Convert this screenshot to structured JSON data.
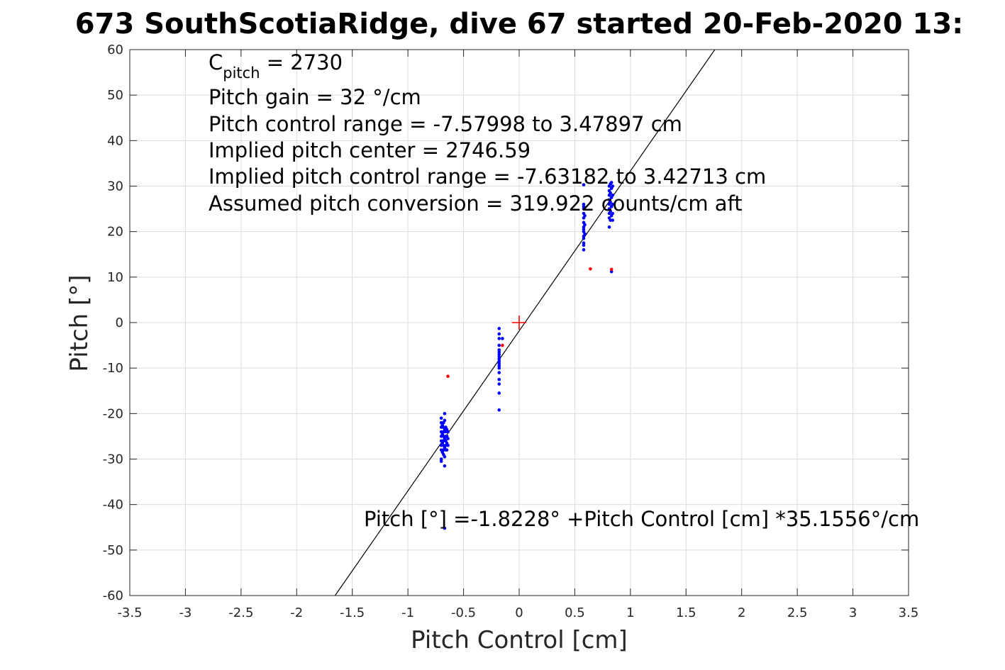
{
  "chart_data": {
    "type": "scatter",
    "title": "673 SouthScotiaRidge, dive 67 started 20-Feb-2020 13:",
    "xlabel": "Pitch Control [cm]",
    "ylabel": "Pitch [°]",
    "xlim": [
      -3.5,
      3.5
    ],
    "ylim": [
      -60,
      60
    ],
    "xticks": [
      -3.5,
      -3,
      -2.5,
      -2,
      -1.5,
      -1,
      -0.5,
      0,
      0.5,
      1,
      1.5,
      2,
      2.5,
      3,
      3.5
    ],
    "yticks": [
      -60,
      -50,
      -40,
      -30,
      -20,
      -10,
      0,
      10,
      20,
      30,
      40,
      50,
      60
    ],
    "xtick_labels": [
      "-3.5",
      "-3",
      "-2.5",
      "-2",
      "-1.5",
      "-1",
      "-0.5",
      "0",
      "0.5",
      "1",
      "1.5",
      "2",
      "2.5",
      "3",
      "3.5"
    ],
    "ytick_labels": [
      "-60",
      "-50",
      "-40",
      "-30",
      "-20",
      "-10",
      "0",
      "10",
      "20",
      "30",
      "40",
      "50",
      "60"
    ],
    "grid": true,
    "annotations": {
      "c_pitch_main": "C",
      "c_pitch_sub": "pitch",
      "c_pitch_value": " = 2730",
      "pitch_gain": "Pitch gain = 32 °/cm",
      "pitch_control_range": "Pitch control range = -7.57998 to 3.47897 cm",
      "implied_center": "Implied pitch center = 2746.59",
      "implied_range": "Implied pitch control range = -7.63182 to 3.42713 cm",
      "assumed_conversion": "Assumed pitch conversion = 319.922 counts/cm aft",
      "fit_equation": "Pitch [°] =-1.8228° +Pitch Control [cm] *35.1556°/cm"
    },
    "fit_line": {
      "intercept": -1.8228,
      "slope": 35.1556,
      "color": "#000000"
    },
    "center_marker": {
      "x": 0,
      "y": 0,
      "color": "#ff0000"
    },
    "series": [
      {
        "color": "#0000ff",
        "points": [
          [
            -0.7,
            -21
          ],
          [
            -0.7,
            -22
          ],
          [
            -0.7,
            -23
          ],
          [
            -0.7,
            -24
          ],
          [
            -0.7,
            -25
          ],
          [
            -0.7,
            -26
          ],
          [
            -0.7,
            -27
          ],
          [
            -0.7,
            -28
          ],
          [
            -0.7,
            -30
          ],
          [
            -0.7,
            -30.5
          ],
          [
            -0.69,
            -22.5
          ],
          [
            -0.69,
            -24.5
          ],
          [
            -0.69,
            -26.5
          ],
          [
            -0.69,
            -28.5
          ],
          [
            -0.68,
            -22
          ],
          [
            -0.68,
            -23
          ],
          [
            -0.68,
            -24
          ],
          [
            -0.68,
            -25
          ],
          [
            -0.68,
            -26
          ],
          [
            -0.68,
            -27
          ],
          [
            -0.68,
            -28
          ],
          [
            -0.68,
            -29
          ],
          [
            -0.67,
            -20
          ],
          [
            -0.67,
            -21.5
          ],
          [
            -0.67,
            -23.5
          ],
          [
            -0.67,
            -25.5
          ],
          [
            -0.67,
            -27.5
          ],
          [
            -0.67,
            -29.5
          ],
          [
            -0.67,
            -31.5
          ],
          [
            -0.66,
            -23
          ],
          [
            -0.66,
            -24
          ],
          [
            -0.66,
            -25
          ],
          [
            -0.66,
            -26
          ],
          [
            -0.66,
            -27
          ],
          [
            -0.66,
            -28
          ],
          [
            -0.65,
            -23.5
          ],
          [
            -0.65,
            -25
          ],
          [
            -0.65,
            -26.5
          ],
          [
            -0.65,
            -28
          ],
          [
            -0.64,
            -24
          ],
          [
            -0.64,
            -25.5
          ],
          [
            -0.64,
            -27
          ],
          [
            -0.67,
            -45.2
          ],
          [
            -0.18,
            -1.3
          ],
          [
            -0.18,
            -2.5
          ],
          [
            -0.18,
            -3.5
          ],
          [
            -0.18,
            -5
          ],
          [
            -0.18,
            -6
          ],
          [
            -0.18,
            -6.5
          ],
          [
            -0.18,
            -7
          ],
          [
            -0.18,
            -7.5
          ],
          [
            -0.18,
            -8
          ],
          [
            -0.18,
            -8.5
          ],
          [
            -0.18,
            -9
          ],
          [
            -0.18,
            -9.5
          ],
          [
            -0.18,
            -10
          ],
          [
            -0.18,
            -11
          ],
          [
            -0.18,
            -12.5
          ],
          [
            -0.18,
            -13.5
          ],
          [
            -0.18,
            -15.5
          ],
          [
            -0.18,
            -19.2
          ],
          [
            -0.15,
            -3.5
          ],
          [
            0.58,
            16
          ],
          [
            0.58,
            17
          ],
          [
            0.58,
            17.5
          ],
          [
            0.58,
            18.5
          ],
          [
            0.58,
            19
          ],
          [
            0.58,
            20
          ],
          [
            0.58,
            20.5
          ],
          [
            0.58,
            21
          ],
          [
            0.58,
            22
          ],
          [
            0.58,
            23
          ],
          [
            0.58,
            24
          ],
          [
            0.58,
            25
          ],
          [
            0.58,
            25.5
          ],
          [
            0.58,
            26
          ],
          [
            0.58,
            30.3
          ],
          [
            0.59,
            19.5
          ],
          [
            0.59,
            21.5
          ],
          [
            0.59,
            23.5
          ],
          [
            0.81,
            21
          ],
          [
            0.81,
            23
          ],
          [
            0.81,
            24
          ],
          [
            0.81,
            25
          ],
          [
            0.81,
            26
          ],
          [
            0.81,
            27
          ],
          [
            0.81,
            28
          ],
          [
            0.81,
            29
          ],
          [
            0.81,
            30
          ],
          [
            0.82,
            22.5
          ],
          [
            0.82,
            24.5
          ],
          [
            0.82,
            26.5
          ],
          [
            0.82,
            28.5
          ],
          [
            0.82,
            30.5
          ],
          [
            0.83,
            23.5
          ],
          [
            0.83,
            25.5
          ],
          [
            0.83,
            27.5
          ],
          [
            0.83,
            29.5
          ],
          [
            0.83,
            30.8
          ],
          [
            0.83,
            11.2
          ],
          [
            0.84,
            24
          ],
          [
            0.84,
            26
          ],
          [
            0.84,
            28
          ],
          [
            0.84,
            30
          ],
          [
            0.84,
            22.5
          ]
        ]
      },
      {
        "color": "#ff0000",
        "points": [
          [
            -0.64,
            -11.8
          ],
          [
            -0.15,
            -5
          ],
          [
            0.64,
            11.8
          ],
          [
            0.83,
            11.7
          ]
        ]
      }
    ]
  }
}
